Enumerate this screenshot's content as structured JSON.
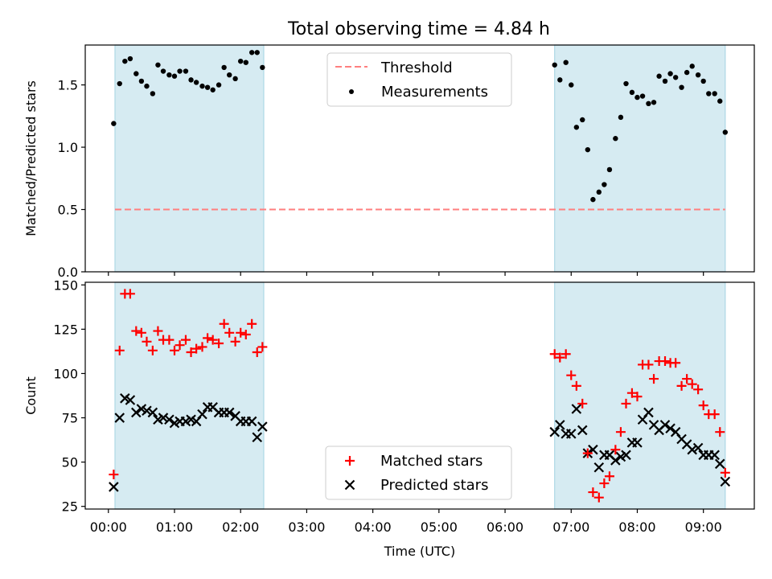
{
  "figure": {
    "title": "Total observing time = 4.84 h"
  },
  "colors": {
    "shade": "#add8e6",
    "threshold": "#ff7f7f",
    "measurements": "#000000",
    "matched": "#ff0000",
    "predicted": "#000000"
  },
  "chart_data": [
    {
      "type": "scatter",
      "panel": "top",
      "ylabel": "Matched/Predicted stars",
      "ylim": [
        0,
        1.82
      ],
      "xlim": [
        -0.35,
        9.77
      ],
      "yticks": [
        0.0,
        0.5,
        1.0,
        1.5
      ],
      "ytick_labels": [
        "0.0",
        "0.5",
        "1.0",
        "1.5"
      ],
      "shaded_intervals": [
        [
          0.1,
          2.35
        ],
        [
          6.75,
          9.33
        ]
      ],
      "legend": {
        "placement": "upper center",
        "threshold_label": "Threshold",
        "measurements_label": "Measurements"
      },
      "threshold": 0.5,
      "series": [
        {
          "name": "Measurements",
          "x": [
            0.08,
            0.17,
            0.25,
            0.33,
            0.42,
            0.5,
            0.58,
            0.67,
            0.75,
            0.83,
            0.92,
            1.0,
            1.08,
            1.17,
            1.25,
            1.33,
            1.42,
            1.5,
            1.58,
            1.67,
            1.75,
            1.83,
            1.92,
            2.0,
            2.08,
            2.17,
            2.25,
            2.33,
            6.75,
            6.83,
            6.92,
            7.0,
            7.08,
            7.17,
            7.25,
            7.33,
            7.42,
            7.5,
            7.58,
            7.67,
            7.75,
            7.83,
            7.92,
            8.0,
            8.08,
            8.17,
            8.25,
            8.33,
            8.42,
            8.5,
            8.58,
            8.67,
            8.75,
            8.83,
            8.92,
            9.0,
            9.08,
            9.17,
            9.25,
            9.33
          ],
          "y": [
            1.19,
            1.51,
            1.69,
            1.71,
            1.59,
            1.53,
            1.49,
            1.43,
            1.66,
            1.61,
            1.58,
            1.57,
            1.61,
            1.61,
            1.54,
            1.52,
            1.49,
            1.48,
            1.46,
            1.5,
            1.64,
            1.58,
            1.55,
            1.69,
            1.68,
            1.76,
            1.76,
            1.64,
            1.66,
            1.54,
            1.68,
            1.5,
            1.16,
            1.22,
            0.98,
            0.58,
            0.64,
            0.7,
            0.82,
            1.07,
            1.24,
            1.51,
            1.44,
            1.4,
            1.41,
            1.35,
            1.36,
            1.57,
            1.53,
            1.59,
            1.56,
            1.48,
            1.6,
            1.65,
            1.58,
            1.53,
            1.43,
            1.43,
            1.37,
            1.12
          ]
        }
      ]
    },
    {
      "type": "scatter",
      "panel": "bottom",
      "xlabel": "Time (UTC)",
      "ylabel": "Count",
      "ylim": [
        23.5,
        151.5
      ],
      "xlim": [
        -0.35,
        9.77
      ],
      "yticks": [
        25,
        50,
        75,
        100,
        125,
        150
      ],
      "ytick_labels": [
        "25",
        "50",
        "75",
        "100",
        "125",
        "150"
      ],
      "xticks": [
        0,
        1,
        2,
        3,
        4,
        5,
        6,
        7,
        8,
        9
      ],
      "xtick_labels": [
        "00:00",
        "01:00",
        "02:00",
        "03:00",
        "04:00",
        "05:00",
        "06:00",
        "07:00",
        "08:00",
        "09:00"
      ],
      "shaded_intervals": [
        [
          0.1,
          2.35
        ],
        [
          6.75,
          9.33
        ]
      ],
      "legend": {
        "placement": "lower center",
        "matched_label": "Matched stars",
        "predicted_label": "Predicted stars"
      },
      "series": [
        {
          "name": "Matched stars",
          "marker": "+",
          "x": [
            0.08,
            0.17,
            0.25,
            0.33,
            0.42,
            0.5,
            0.58,
            0.67,
            0.75,
            0.83,
            0.92,
            1.0,
            1.08,
            1.17,
            1.25,
            1.33,
            1.42,
            1.5,
            1.58,
            1.67,
            1.75,
            1.83,
            1.92,
            2.0,
            2.08,
            2.17,
            2.25,
            2.33,
            6.75,
            6.83,
            6.92,
            7.0,
            7.08,
            7.17,
            7.25,
            7.33,
            7.42,
            7.5,
            7.58,
            7.67,
            7.75,
            7.83,
            7.92,
            8.0,
            8.08,
            8.17,
            8.25,
            8.33,
            8.42,
            8.5,
            8.58,
            8.67,
            8.75,
            8.83,
            8.92,
            9.0,
            9.08,
            9.17,
            9.25,
            9.33
          ],
          "y": [
            43,
            113,
            145,
            145,
            124,
            123,
            118,
            113,
            124,
            119,
            119,
            113,
            116,
            119,
            112,
            114,
            115,
            120,
            119,
            117,
            128,
            123,
            118,
            123,
            122,
            128,
            112,
            115,
            111,
            109,
            111,
            99,
            93,
            83,
            55,
            33,
            30,
            38,
            42,
            57,
            67,
            83,
            89,
            87,
            105,
            105,
            97,
            107,
            107,
            106,
            106,
            93,
            97,
            94,
            91,
            82,
            77,
            77,
            67,
            44
          ]
        },
        {
          "name": "Predicted stars",
          "marker": "x",
          "x": [
            0.08,
            0.17,
            0.25,
            0.33,
            0.42,
            0.5,
            0.58,
            0.67,
            0.75,
            0.83,
            0.92,
            1.0,
            1.08,
            1.17,
            1.25,
            1.33,
            1.42,
            1.5,
            1.58,
            1.67,
            1.75,
            1.83,
            1.92,
            2.0,
            2.08,
            2.17,
            2.25,
            2.33,
            6.75,
            6.83,
            6.92,
            7.0,
            7.08,
            7.17,
            7.25,
            7.33,
            7.42,
            7.5,
            7.58,
            7.67,
            7.75,
            7.83,
            7.92,
            8.0,
            8.08,
            8.17,
            8.25,
            8.33,
            8.42,
            8.5,
            8.58,
            8.67,
            8.75,
            8.83,
            8.92,
            9.0,
            9.08,
            9.17,
            9.25,
            9.33
          ],
          "y": [
            36,
            75,
            86,
            85,
            78,
            80,
            79,
            78,
            74,
            75,
            74,
            72,
            73,
            73,
            74,
            73,
            77,
            81,
            81,
            78,
            78,
            78,
            76,
            73,
            73,
            73,
            64,
            70,
            67,
            71,
            66,
            66,
            80,
            68,
            55,
            57,
            47,
            54,
            54,
            51,
            53,
            54,
            61,
            61,
            74,
            78,
            71,
            68,
            71,
            69,
            67,
            63,
            60,
            57,
            58,
            54,
            54,
            54,
            49,
            39
          ]
        }
      ]
    }
  ]
}
